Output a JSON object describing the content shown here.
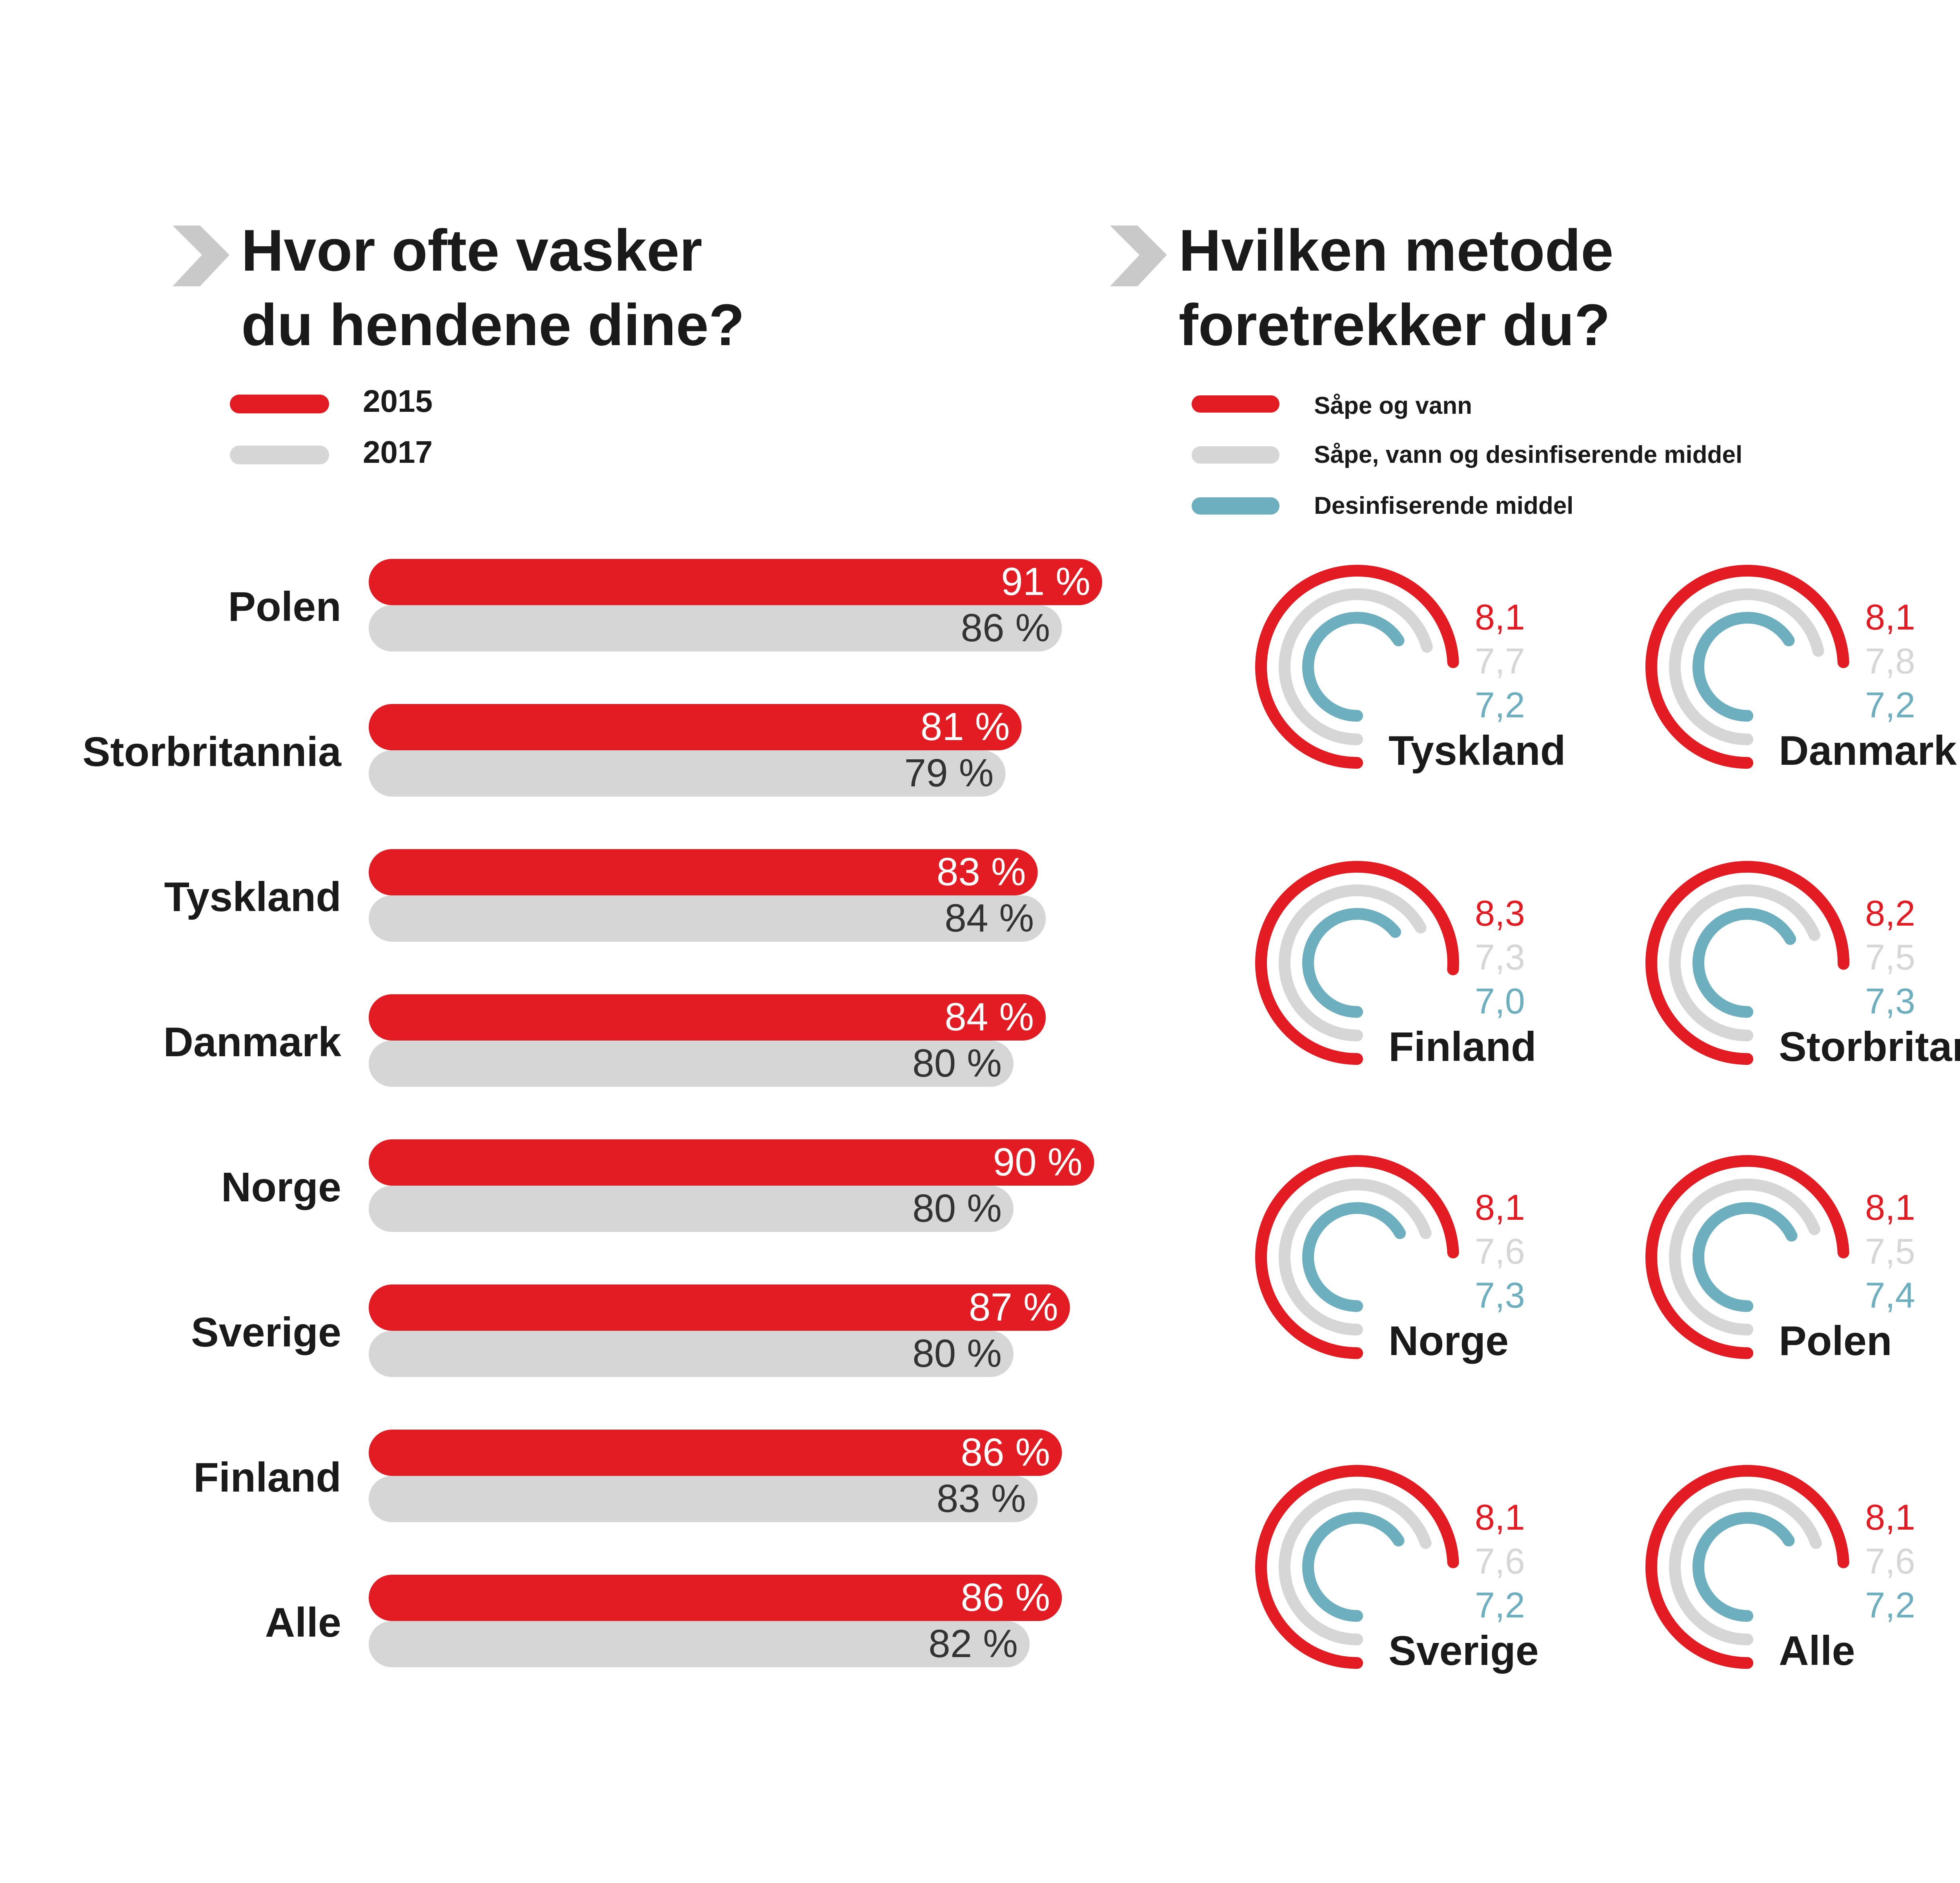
{
  "colors": {
    "red": "#e31b23",
    "grey": "#d6d6d6",
    "teal": "#6dafbe",
    "text": "#1a1a1a",
    "chevron": "#c9c9c9"
  },
  "icons": {
    "heading_marker": "chevron-right-icon"
  },
  "chart_data": [
    {
      "type": "bar",
      "orientation": "horizontal",
      "title_lines": [
        "Hvor ofte vasker",
        "du hendene dine?"
      ],
      "legend": [
        {
          "name": "2015",
          "color": "#e31b23"
        },
        {
          "name": "2017",
          "color": "#d6d6d6"
        }
      ],
      "categories": [
        "Polen",
        "Storbritannia",
        "Tyskland",
        "Danmark",
        "Norge",
        "Sverige",
        "Finland",
        "Alle"
      ],
      "series": [
        {
          "name": "2015",
          "values": [
            91,
            81,
            83,
            84,
            90,
            87,
            86,
            86
          ],
          "labels": [
            "91 %",
            "81 %",
            "83 %",
            "84 %",
            "90 %",
            "87 %",
            "86 %",
            "86 %"
          ]
        },
        {
          "name": "2017",
          "values": [
            86,
            79,
            84,
            80,
            80,
            80,
            83,
            82
          ],
          "labels": [
            "86 %",
            "79 %",
            "84 %",
            "80 %",
            "80 %",
            "80 %",
            "83 %",
            "82 %"
          ]
        }
      ],
      "unit": "%"
    },
    {
      "type": "radial-bar",
      "title_lines": [
        "Hvilken metode",
        "foretrekker du?"
      ],
      "legend": [
        {
          "name": "Såpe og vann",
          "color": "#e31b23"
        },
        {
          "name": "Såpe, vann og desinfiserende middel",
          "color": "#d6d6d6"
        },
        {
          "name": "Desinfiserende middel",
          "color": "#6dafbe"
        }
      ],
      "scale_max": 10,
      "countries": [
        {
          "name": "Tyskland",
          "values": [
            8.1,
            7.7,
            7.2
          ],
          "labels": [
            "8,1",
            "7,7",
            "7,2"
          ]
        },
        {
          "name": "Danmark",
          "values": [
            8.1,
            7.8,
            7.2
          ],
          "labels": [
            "8,1",
            "7,8",
            "7,2"
          ]
        },
        {
          "name": "Finland",
          "values": [
            8.3,
            7.3,
            7.0
          ],
          "labels": [
            "8,3",
            "7,3",
            "7,0"
          ]
        },
        {
          "name": "Storbritannia",
          "values": [
            8.2,
            7.5,
            7.3
          ],
          "labels": [
            "8,2",
            "7,5",
            "7,3"
          ]
        },
        {
          "name": "Norge",
          "values": [
            8.1,
            7.6,
            7.3
          ],
          "labels": [
            "8,1",
            "7,6",
            "7,3"
          ]
        },
        {
          "name": "Polen",
          "values": [
            8.1,
            7.5,
            7.4
          ],
          "labels": [
            "8,1",
            "7,5",
            "7,4"
          ]
        },
        {
          "name": "Sverige",
          "values": [
            8.1,
            7.6,
            7.2
          ],
          "labels": [
            "8,1",
            "7,6",
            "7,2"
          ]
        },
        {
          "name": "Alle",
          "values": [
            8.1,
            7.6,
            7.2
          ],
          "labels": [
            "8,1",
            "7,6",
            "7,2"
          ]
        }
      ]
    }
  ]
}
